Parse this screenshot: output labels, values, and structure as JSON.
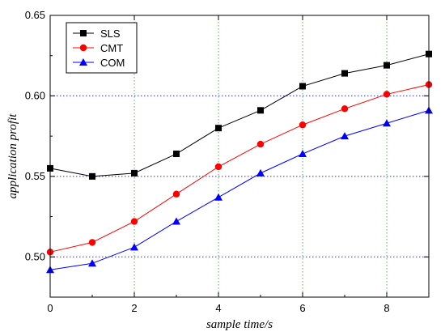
{
  "chart_data": {
    "type": "line",
    "xlabel": "sample time/s",
    "ylabel": "application profit",
    "xlim": [
      0,
      9
    ],
    "ylim": [
      0.475,
      0.65
    ],
    "x_ticks": [
      0,
      2,
      4,
      6,
      8
    ],
    "y_ticks": [
      0.5,
      0.55,
      0.6,
      0.65
    ],
    "y_tick_labels": [
      "0.50",
      "0.55",
      "0.60",
      "0.65"
    ],
    "grid": {
      "vertical": "green-dotted",
      "horizontal": "blue-dotted"
    },
    "legend_position": "top-left",
    "x": [
      0,
      1,
      2,
      3,
      4,
      5,
      6,
      7,
      8,
      9
    ],
    "series": [
      {
        "name": "SLS",
        "marker": "square",
        "color": "#000000",
        "values": [
          0.555,
          0.55,
          0.552,
          0.564,
          0.58,
          0.591,
          0.606,
          0.614,
          0.619,
          0.626
        ]
      },
      {
        "name": "CMT",
        "marker": "circle",
        "color": "#ff0000",
        "values": [
          0.503,
          0.509,
          0.522,
          0.539,
          0.556,
          0.57,
          0.582,
          0.592,
          0.601,
          0.607
        ]
      },
      {
        "name": "COM",
        "marker": "triangle",
        "color": "#0000ff",
        "values": [
          0.492,
          0.496,
          0.506,
          0.522,
          0.537,
          0.552,
          0.564,
          0.575,
          0.583,
          0.591
        ]
      }
    ]
  }
}
